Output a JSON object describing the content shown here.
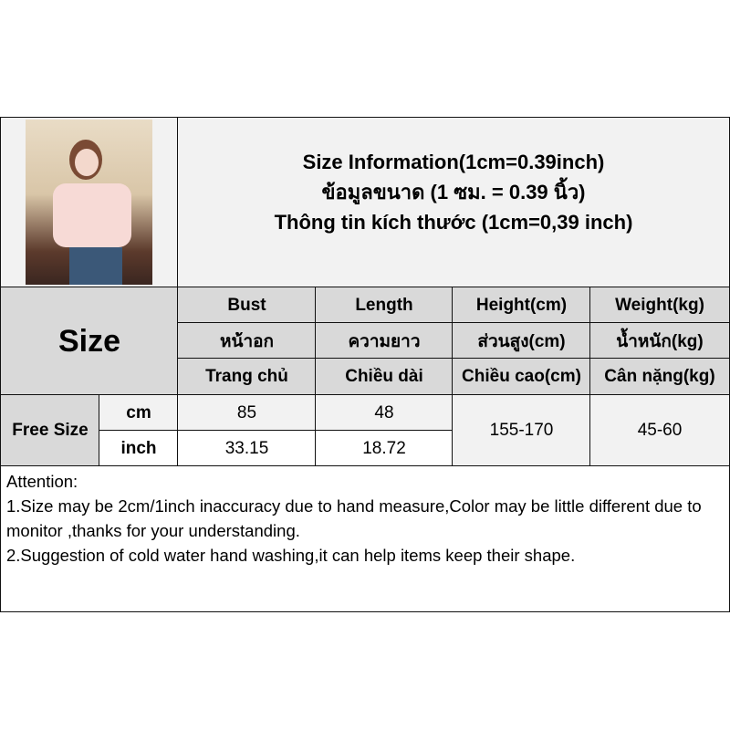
{
  "header": {
    "title_en": "Size Information(1cm=0.39inch)",
    "title_th": "ข้อมูลขนาด (1 ซม. = 0.39 นิ้ว)",
    "title_vi": "Thông tin kích thước (1cm=0,39 inch)"
  },
  "table": {
    "size_label": "Size",
    "columns": [
      {
        "en": "Bust",
        "th": "หน้าอก",
        "vi": "Trang chủ"
      },
      {
        "en": "Length",
        "th": "ความยาว",
        "vi": "Chiều dài"
      },
      {
        "en": "Height(cm)",
        "th": "ส่วนสูง(cm)",
        "vi": "Chiều cao(cm)"
      },
      {
        "en": "Weight(kg)",
        "th": "น้ำหนัก(kg)",
        "vi": "Cân nặng(kg)"
      }
    ],
    "row": {
      "size": "Free Size",
      "units": [
        "cm",
        "inch"
      ],
      "bust": [
        "85",
        "33.15"
      ],
      "length": [
        "48",
        "18.72"
      ],
      "height": "155-170",
      "weight": "45-60"
    }
  },
  "attention": {
    "heading": "Attention:",
    "line1": "1.Size may be 2cm/1inch inaccuracy due to hand measure,Color may be little different due to monitor ,thanks for your understanding.",
    "line2": "2.Suggestion of cold water hand washing,it can help items keep their shape."
  }
}
